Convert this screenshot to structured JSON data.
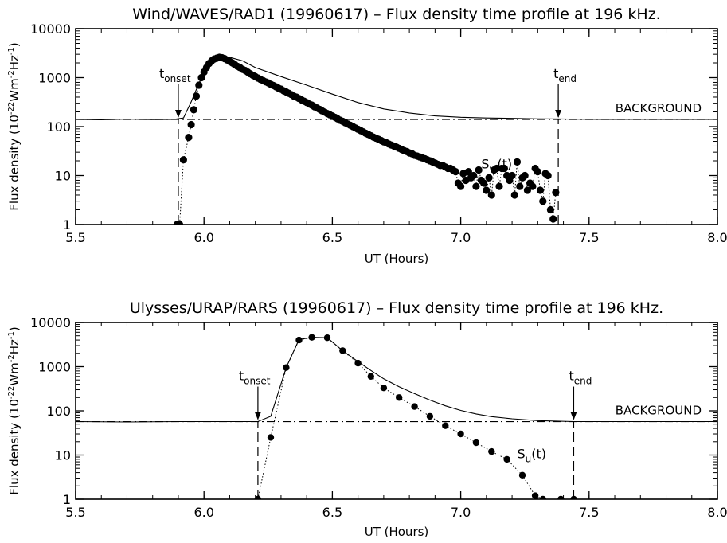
{
  "chart_data": [
    {
      "type": "scatter",
      "title": "Wind/WAVES/RAD1 (19960617) – Flux density time profile at 196 kHz.",
      "xlabel": "UT (Hours)",
      "ylabel_main": "Flux density (10",
      "ylabel_exp1": "-22",
      "ylabel_unit1": "Wm",
      "ylabel_exp2": "-2",
      "ylabel_unit2": "Hz",
      "ylabel_exp3": "-1",
      "ylabel_close": ")",
      "xlim": [
        5.5,
        8.0
      ],
      "ylim": [
        1,
        10000
      ],
      "yscale": "log",
      "x_ticks": [
        5.5,
        6.0,
        6.5,
        7.0,
        7.5,
        8.0
      ],
      "x_tick_labels": [
        "5.5",
        "6.0",
        "6.5",
        "7.0",
        "7.5",
        "8.0"
      ],
      "y_ticks": [
        1,
        10,
        100,
        1000,
        10000
      ],
      "y_tick_labels": [
        "1",
        "10",
        "100",
        "1000",
        "10000"
      ],
      "background_level": 140,
      "background_label": "BACKGROUND",
      "onset_x": 5.9,
      "end_x": 7.38,
      "onset_label": "t",
      "onset_sub": "onset",
      "end_label": "t",
      "end_sub": "end",
      "series_label": "S",
      "series_sub": "w",
      "series_suffix": "(t)",
      "total_flux": {
        "x": [
          5.5,
          5.6,
          5.7,
          5.8,
          5.88,
          5.92,
          5.95,
          6.0,
          6.05,
          6.1,
          6.15,
          6.2,
          6.3,
          6.4,
          6.5,
          6.6,
          6.7,
          6.8,
          6.9,
          7.0,
          7.1,
          7.2,
          7.3,
          7.38,
          7.5,
          7.6,
          7.7,
          7.8,
          7.9,
          8.0
        ],
        "y": [
          140,
          138,
          142,
          139,
          140,
          150,
          320,
          1350,
          2300,
          2600,
          2200,
          1600,
          1050,
          700,
          460,
          310,
          230,
          190,
          165,
          155,
          150,
          147,
          144,
          143,
          141,
          140,
          141,
          140,
          140,
          140
        ]
      },
      "points": {
        "x": [
          5.895,
          5.905,
          5.92,
          5.94,
          5.95,
          5.96,
          5.97,
          5.98,
          5.99,
          6.0,
          6.01,
          6.02,
          6.03,
          6.04,
          6.05,
          6.06,
          6.07,
          6.08,
          6.09,
          6.1,
          6.11,
          6.12,
          6.13,
          6.14,
          6.15,
          6.16,
          6.17,
          6.18,
          6.19,
          6.2,
          6.21,
          6.22,
          6.23,
          6.24,
          6.25,
          6.26,
          6.27,
          6.28,
          6.29,
          6.3,
          6.31,
          6.32,
          6.33,
          6.34,
          6.35,
          6.36,
          6.37,
          6.38,
          6.39,
          6.4,
          6.41,
          6.42,
          6.43,
          6.44,
          6.45,
          6.46,
          6.47,
          6.48,
          6.49,
          6.5,
          6.51,
          6.52,
          6.53,
          6.54,
          6.55,
          6.56,
          6.57,
          6.58,
          6.59,
          6.6,
          6.61,
          6.62,
          6.63,
          6.64,
          6.65,
          6.66,
          6.67,
          6.68,
          6.69,
          6.7,
          6.71,
          6.72,
          6.73,
          6.74,
          6.75,
          6.76,
          6.77,
          6.78,
          6.79,
          6.8,
          6.81,
          6.82,
          6.83,
          6.84,
          6.85,
          6.86,
          6.87,
          6.88,
          6.89,
          6.9,
          6.91,
          6.92,
          6.93,
          6.94,
          6.95,
          6.96,
          6.97,
          6.98,
          6.99,
          7.0,
          7.01,
          7.02,
          7.03,
          7.04,
          7.05,
          7.06,
          7.07,
          7.08,
          7.09,
          7.1,
          7.11,
          7.12,
          7.13,
          7.14,
          7.15,
          7.16,
          7.17,
          7.18,
          7.19,
          7.2,
          7.21,
          7.22,
          7.23,
          7.24,
          7.25,
          7.26,
          7.27,
          7.28,
          7.29,
          7.3,
          7.31,
          7.32,
          7.33,
          7.34,
          7.35,
          7.36,
          7.37
        ],
        "y": [
          1,
          1,
          21,
          60,
          110,
          220,
          420,
          700,
          1000,
          1300,
          1600,
          1950,
          2200,
          2400,
          2500,
          2600,
          2550,
          2450,
          2300,
          2150,
          2000,
          1850,
          1700,
          1600,
          1480,
          1400,
          1300,
          1200,
          1120,
          1050,
          980,
          920,
          870,
          820,
          780,
          730,
          690,
          650,
          610,
          580,
          540,
          510,
          480,
          450,
          420,
          400,
          375,
          350,
          330,
          310,
          290,
          275,
          255,
          240,
          225,
          210,
          198,
          185,
          175,
          165,
          155,
          145,
          135,
          128,
          120,
          113,
          106,
          100,
          94,
          88,
          83,
          78,
          73,
          69,
          65,
          61,
          58,
          55,
          52,
          49,
          47,
          44,
          42,
          40,
          38,
          36,
          34,
          32,
          31,
          29,
          28,
          26,
          25,
          24,
          23,
          22,
          21,
          20,
          19,
          18,
          17,
          16,
          16,
          15,
          14,
          14,
          13,
          12,
          7,
          6,
          11,
          8,
          12,
          9,
          10,
          6,
          13,
          8,
          7,
          5,
          9,
          4,
          13,
          14,
          6,
          14,
          14,
          10,
          8,
          10,
          4,
          19,
          6,
          9,
          10,
          5,
          7,
          6,
          14,
          12,
          5,
          3,
          11,
          10,
          2,
          1.3,
          4.5
        ]
      }
    },
    {
      "type": "scatter",
      "title": "Ulysses/URAP/RARS (19960617) – Flux density time profile at 196 kHz.",
      "xlabel": "UT (Hours)",
      "ylabel_main": "Flux density (10",
      "ylabel_exp1": "-22",
      "ylabel_unit1": "Wm",
      "ylabel_exp2": "-2",
      "ylabel_unit2": "Hz",
      "ylabel_exp3": "-1",
      "ylabel_close": ")",
      "xlim": [
        5.5,
        8.0
      ],
      "ylim": [
        1,
        10000
      ],
      "yscale": "log",
      "x_ticks": [
        5.5,
        6.0,
        6.5,
        7.0,
        7.5,
        8.0
      ],
      "x_tick_labels": [
        "5.5",
        "6.0",
        "6.5",
        "7.0",
        "7.5",
        "8.0"
      ],
      "y_ticks": [
        1,
        10,
        100,
        1000,
        10000
      ],
      "y_tick_labels": [
        "1",
        "10",
        "100",
        "1000",
        "10000"
      ],
      "background_level": 57,
      "background_label": "BACKGROUND",
      "onset_x": 6.21,
      "end_x": 7.44,
      "onset_label": "t",
      "onset_sub": "onset",
      "end_label": "t",
      "end_sub": "end",
      "series_label": "S",
      "series_sub": "u",
      "series_suffix": "(t)",
      "total_flux": {
        "x": [
          5.5,
          5.7,
          5.9,
          6.1,
          6.21,
          6.26,
          6.32,
          6.37,
          6.42,
          6.48,
          6.54,
          6.6,
          6.65,
          6.7,
          6.76,
          6.82,
          6.88,
          6.94,
          7.0,
          7.06,
          7.12,
          7.2,
          7.3,
          7.44,
          7.6,
          7.8,
          8.0
        ],
        "y": [
          57,
          56,
          57,
          57,
          57,
          75,
          950,
          4100,
          4600,
          4500,
          2300,
          1300,
          820,
          530,
          350,
          245,
          175,
          130,
          102,
          85,
          74,
          66,
          60,
          57,
          57,
          57,
          57
        ]
      },
      "points": {
        "x": [
          6.21,
          6.26,
          6.32,
          6.37,
          6.42,
          6.48,
          6.54,
          6.6,
          6.65,
          6.7,
          6.76,
          6.82,
          6.88,
          6.94,
          7.0,
          7.06,
          7.12,
          7.18,
          7.24,
          7.29,
          7.32,
          7.39,
          7.44
        ],
        "y": [
          1,
          25,
          950,
          4000,
          4600,
          4500,
          2300,
          1200,
          600,
          330,
          200,
          125,
          75,
          46,
          30,
          19,
          12,
          8,
          3.5,
          1.2,
          1,
          1,
          1
        ]
      }
    }
  ]
}
